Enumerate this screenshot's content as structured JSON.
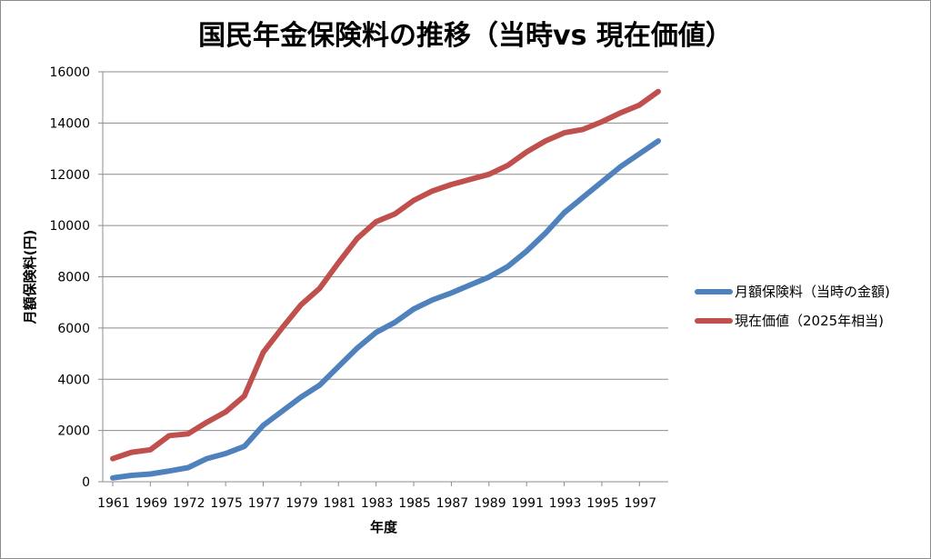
{
  "chart_data": {
    "type": "line",
    "title": "国民年金保険料の推移（当時vs 現在価値）",
    "xlabel": "年度",
    "ylabel": "月額保険料(円)",
    "ylim": [
      0,
      16000
    ],
    "y_ticks": [
      "0",
      "2000",
      "4000",
      "6000",
      "8000",
      "10000",
      "12000",
      "14000",
      "16000"
    ],
    "x_tick_labels": [
      "1961",
      "1969",
      "1972",
      "1975",
      "1977",
      "1979",
      "1981",
      "1983",
      "1985",
      "1987",
      "1989",
      "1991",
      "1993",
      "1995",
      "1997"
    ],
    "x_tick_indices": [
      0,
      2,
      4,
      6,
      8,
      10,
      12,
      14,
      16,
      18,
      20,
      22,
      24,
      26,
      28
    ],
    "point_count": 30,
    "grid": "horizontal",
    "legend_position": "right",
    "series": [
      {
        "name": "月額保険料（当時の金額)",
        "color": "#4f81bd",
        "values": [
          150,
          250,
          300,
          420,
          550,
          900,
          1100,
          1380,
          2200,
          2750,
          3300,
          3770,
          4500,
          5220,
          5830,
          6220,
          6740,
          7100,
          7370,
          7680,
          7990,
          8400,
          9000,
          9700,
          10500,
          11100,
          11700,
          12300,
          12800,
          13300
        ]
      },
      {
        "name": "現在価値（2025年相当)",
        "color": "#c0504d",
        "values": [
          900,
          1150,
          1250,
          1800,
          1870,
          2320,
          2720,
          3350,
          5050,
          6000,
          6900,
          7550,
          8550,
          9500,
          10150,
          10450,
          10980,
          11350,
          11600,
          11800,
          12000,
          12350,
          12870,
          13300,
          13620,
          13750,
          14050,
          14400,
          14700,
          15230
        ]
      }
    ]
  }
}
